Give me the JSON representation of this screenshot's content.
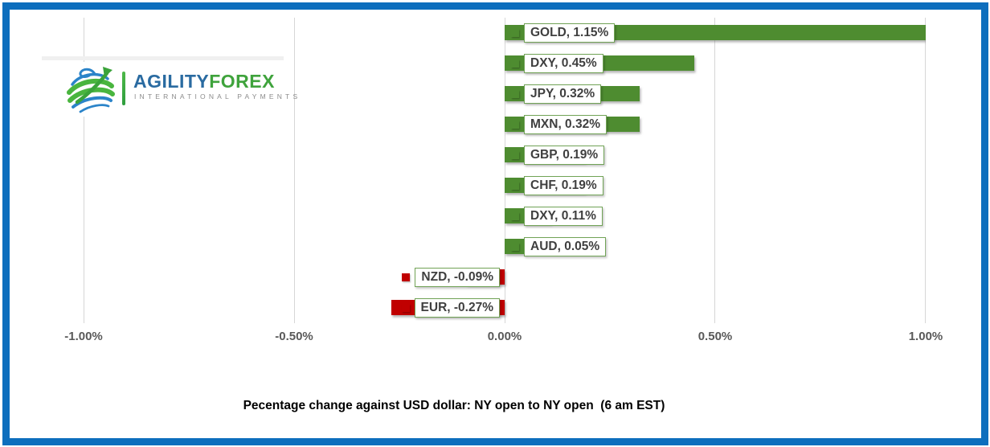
{
  "logo": {
    "brand_primary": "AGILITY",
    "brand_secondary": "FOREX",
    "tagline": "INTERNATIONAL PAYMENTS"
  },
  "chart_data": {
    "type": "bar",
    "orientation": "horizontal",
    "title": "Pecentage change against USD dollar: NY open to NY open  (6 am EST)",
    "categories": [
      "GOLD",
      "DXY",
      "JPY",
      "MXN",
      "GBP",
      "CHF",
      "DXY",
      "AUD",
      "NZD",
      "EUR"
    ],
    "values": [
      1.15,
      0.45,
      0.32,
      0.32,
      0.19,
      0.19,
      0.11,
      0.05,
      -0.09,
      -0.27
    ],
    "data_labels": [
      "GOLD, 1.15%",
      "DXY, 0.45%",
      "JPY, 0.32%",
      "MXN, 0.32%",
      "GBP, 0.19%",
      "CHF, 0.19%",
      "DXY, 0.11%",
      "AUD, 0.05%",
      "NZD, -0.09%",
      "EUR, -0.27%"
    ],
    "x_ticks": [
      "-1.00%",
      "-0.50%",
      "0.00%",
      "0.50%",
      "1.00%"
    ],
    "xlim": [
      -1.0,
      1.0
    ],
    "grid": true,
    "legend_position": "none"
  },
  "colors": {
    "positive_bar": "#4e8c30",
    "negative_bar": "#c00000",
    "label_box_border": "#71a356",
    "label_text": "#3f3f3f",
    "axis_text": "#595959",
    "gridline": "#d6d6d6",
    "frame_border": "#0d6ebd",
    "brand_blue": "#2a6ba1",
    "brand_green": "#3fa33c",
    "tagline_gray": "#8c8c8c"
  }
}
